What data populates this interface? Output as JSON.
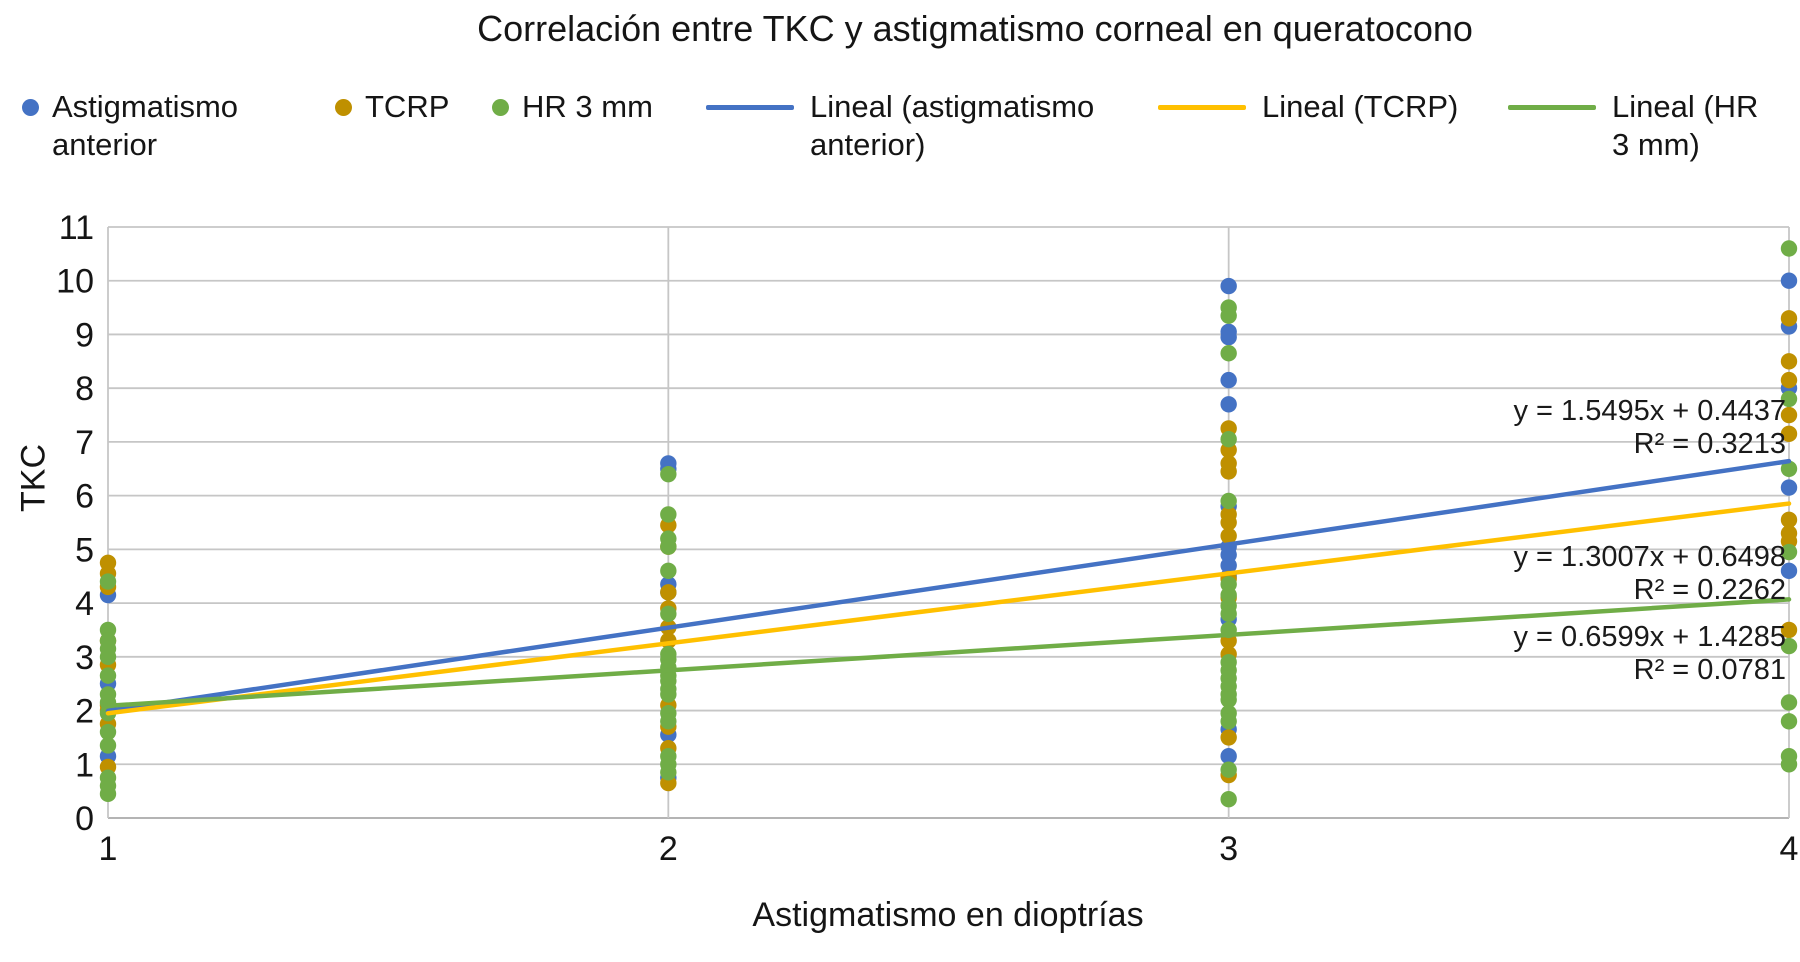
{
  "title": "Correlación entre TKC y astigmatismo corneal en queratocono",
  "legend": {
    "items": [
      {
        "label": "Astigmatismo anterior",
        "marker": "dot"
      },
      {
        "label": "TCRP",
        "marker": "dot"
      },
      {
        "label": "HR 3 mm",
        "marker": "dot"
      },
      {
        "label": "Lineal (astigmatismo anterior)",
        "marker": "line"
      },
      {
        "label": "Lineal (TCRP)",
        "marker": "line"
      },
      {
        "label": "Lineal (HR 3 mm)",
        "marker": "line"
      }
    ]
  },
  "chart_data": {
    "type": "scatter",
    "title": "Correlación entre TKC y astigmatismo corneal en queratocono",
    "xlabel": "Astigmatismo en dioptrías",
    "ylabel": "TKC",
    "xlim": [
      1,
      4
    ],
    "ylim": [
      0,
      11
    ],
    "x_ticks": [
      1,
      2,
      3,
      4
    ],
    "y_ticks": [
      0,
      1,
      2,
      3,
      4,
      5,
      6,
      7,
      8,
      9,
      10,
      11
    ],
    "grid": true,
    "gridline_color": "#C6C6C6",
    "legend_position": "top",
    "series": [
      {
        "name": "Astigmatismo anterior",
        "color": "#4472C4",
        "points": [
          [
            1,
            4.15
          ],
          [
            1,
            2.5
          ],
          [
            1,
            1.15
          ],
          [
            2,
            6.6
          ],
          [
            2,
            6.5
          ],
          [
            2,
            4.35
          ],
          [
            2,
            4.2
          ],
          [
            2,
            1.55
          ],
          [
            2,
            0.75
          ],
          [
            3,
            9.9
          ],
          [
            3,
            9.05
          ],
          [
            3,
            8.95
          ],
          [
            3,
            8.15
          ],
          [
            3,
            7.7
          ],
          [
            3,
            5.8
          ],
          [
            3,
            5.05
          ],
          [
            3,
            4.9
          ],
          [
            3,
            4.7
          ],
          [
            3,
            4.5
          ],
          [
            3,
            3.7
          ],
          [
            3,
            1.65
          ],
          [
            3,
            1.15
          ],
          [
            4,
            10.0
          ],
          [
            4,
            9.15
          ],
          [
            4,
            8.0
          ],
          [
            4,
            6.15
          ],
          [
            4,
            4.6
          ]
        ]
      },
      {
        "name": "TCRP",
        "color": "#BF9000",
        "points": [
          [
            1,
            4.75
          ],
          [
            1,
            4.55
          ],
          [
            1,
            4.3
          ],
          [
            1,
            3.3
          ],
          [
            1,
            2.85
          ],
          [
            1,
            2.1
          ],
          [
            1,
            2.0
          ],
          [
            1,
            1.75
          ],
          [
            1,
            0.95
          ],
          [
            2,
            5.45
          ],
          [
            2,
            5.05
          ],
          [
            2,
            4.2
          ],
          [
            2,
            3.9
          ],
          [
            2,
            3.55
          ],
          [
            2,
            3.3
          ],
          [
            2,
            2.1
          ],
          [
            2,
            1.7
          ],
          [
            2,
            1.3
          ],
          [
            2,
            0.65
          ],
          [
            3,
            7.25
          ],
          [
            3,
            6.85
          ],
          [
            3,
            6.6
          ],
          [
            3,
            6.45
          ],
          [
            3,
            5.65
          ],
          [
            3,
            5.5
          ],
          [
            3,
            5.25
          ],
          [
            3,
            4.45
          ],
          [
            3,
            4.1
          ],
          [
            3,
            3.3
          ],
          [
            3,
            3.05
          ],
          [
            3,
            1.5
          ],
          [
            3,
            0.8
          ],
          [
            4,
            9.3
          ],
          [
            4,
            8.5
          ],
          [
            4,
            8.15
          ],
          [
            4,
            7.5
          ],
          [
            4,
            7.15
          ],
          [
            4,
            5.55
          ],
          [
            4,
            5.3
          ],
          [
            4,
            5.15
          ],
          [
            4,
            3.5
          ]
        ]
      },
      {
        "name": "HR 3 mm",
        "color": "#70AD47",
        "points": [
          [
            1,
            4.4
          ],
          [
            1,
            3.5
          ],
          [
            1,
            3.3
          ],
          [
            1,
            3.15
          ],
          [
            1,
            3.0
          ],
          [
            1,
            2.65
          ],
          [
            1,
            2.3
          ],
          [
            1,
            2.15
          ],
          [
            1,
            1.95
          ],
          [
            1,
            1.6
          ],
          [
            1,
            1.35
          ],
          [
            1,
            0.75
          ],
          [
            1,
            0.6
          ],
          [
            1,
            0.45
          ],
          [
            2,
            6.4
          ],
          [
            2,
            5.65
          ],
          [
            2,
            5.2
          ],
          [
            2,
            5.05
          ],
          [
            2,
            4.6
          ],
          [
            2,
            3.8
          ],
          [
            2,
            3.05
          ],
          [
            2,
            2.95
          ],
          [
            2,
            2.8
          ],
          [
            2,
            2.65
          ],
          [
            2,
            2.55
          ],
          [
            2,
            2.4
          ],
          [
            2,
            2.3
          ],
          [
            2,
            1.95
          ],
          [
            2,
            1.8
          ],
          [
            2,
            1.15
          ],
          [
            2,
            1.0
          ],
          [
            2,
            0.85
          ],
          [
            3,
            9.5
          ],
          [
            3,
            9.35
          ],
          [
            3,
            8.65
          ],
          [
            3,
            7.05
          ],
          [
            3,
            5.9
          ],
          [
            3,
            4.35
          ],
          [
            3,
            4.15
          ],
          [
            3,
            3.95
          ],
          [
            3,
            3.8
          ],
          [
            3,
            3.5
          ],
          [
            3,
            2.9
          ],
          [
            3,
            2.75
          ],
          [
            3,
            2.6
          ],
          [
            3,
            2.45
          ],
          [
            3,
            2.3
          ],
          [
            3,
            2.2
          ],
          [
            3,
            1.95
          ],
          [
            3,
            1.8
          ],
          [
            3,
            0.9
          ],
          [
            3,
            0.35
          ],
          [
            4,
            10.6
          ],
          [
            4,
            7.8
          ],
          [
            4,
            6.5
          ],
          [
            4,
            4.95
          ],
          [
            4,
            3.2
          ],
          [
            4,
            2.15
          ],
          [
            4,
            1.8
          ],
          [
            4,
            1.15
          ],
          [
            4,
            1.0
          ]
        ]
      }
    ],
    "trendlines": [
      {
        "name": "Lineal (astigmatismo anterior)",
        "color": "#4472C4",
        "slope": 1.5495,
        "intercept": 0.4437,
        "equation": "y = 1.5495x + 0.4437",
        "r2": "R² = 0.3213"
      },
      {
        "name": "Lineal (TCRP)",
        "color": "#FFC000",
        "slope": 1.3007,
        "intercept": 0.6498,
        "equation": "y = 1.3007x + 0.6498",
        "r2": "R² = 0.2262"
      },
      {
        "name": "Lineal (HR 3 mm)",
        "color": "#70AD47",
        "slope": 0.6599,
        "intercept": 1.4285,
        "equation": "y = 0.6599x + 1.4285",
        "r2": "R² = 0.0781"
      }
    ]
  }
}
